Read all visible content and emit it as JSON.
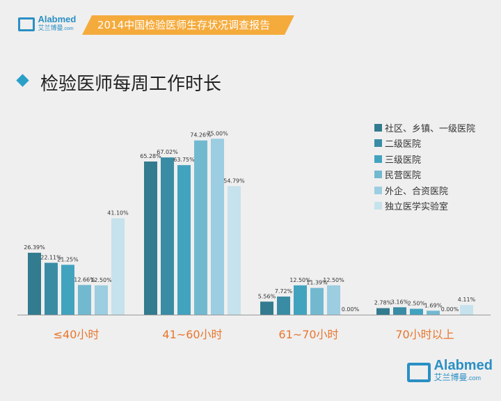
{
  "header": {
    "logo_en": "Alabmed",
    "logo_com": ".com",
    "logo_cn": "艾兰博曼",
    "banner": "2014中国检验医师生存状况调查报告"
  },
  "footer_logo": {
    "en": "Alabmed",
    "com": ".com",
    "cn": "艾兰博曼"
  },
  "chart_data": {
    "type": "bar",
    "title": "检验医师每周工作时长",
    "categories": [
      "≤40小时",
      "41~60小时",
      "61~70小时",
      "70小时以上"
    ],
    "series": [
      {
        "name": "社区、乡镇、一级医院",
        "color": "#337b8e",
        "values": [
          26.39,
          65.28,
          5.56,
          2.78
        ]
      },
      {
        "name": "二级医院",
        "color": "#3a8ca5",
        "values": [
          22.11,
          67.02,
          7.72,
          3.16
        ]
      },
      {
        "name": "三级医院",
        "color": "#42a3bf",
        "values": [
          21.25,
          63.75,
          12.5,
          2.5
        ]
      },
      {
        "name": "民营医院",
        "color": "#72b9d0",
        "values": [
          12.66,
          74.26,
          11.39,
          1.69
        ]
      },
      {
        "name": "外企、合资医院",
        "color": "#9ccde0",
        "values": [
          12.5,
          75.0,
          12.5,
          0.0
        ]
      },
      {
        "name": "独立医学实验室",
        "color": "#c6e2ec",
        "values": [
          41.1,
          54.79,
          0.0,
          4.11
        ]
      }
    ],
    "ylim": [
      0,
      80
    ],
    "legend": "right",
    "category_color": "#e8762d"
  }
}
